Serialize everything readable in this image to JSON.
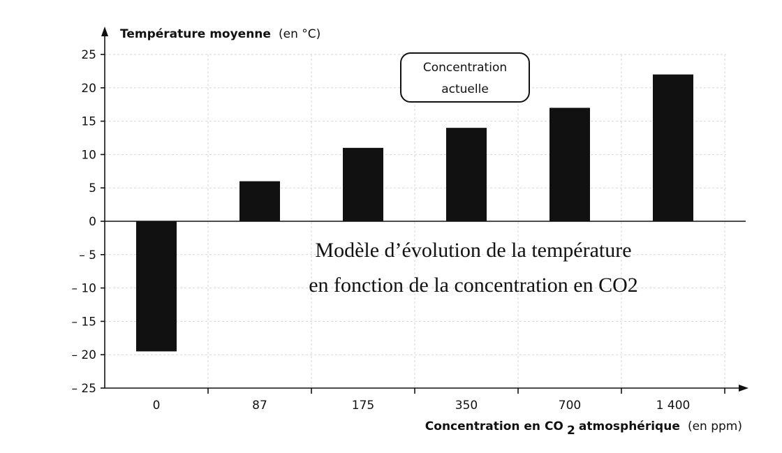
{
  "chart_data": {
    "type": "bar",
    "categories": [
      "0",
      "87",
      "175",
      "350",
      "700",
      "1 400"
    ],
    "values": [
      -19.5,
      6,
      11,
      14,
      17,
      22
    ],
    "ylabel_bold": "Température moyenne",
    "ylabel_unit": "(en °C)",
    "xlabel_bold_prefix": "Concentration en CO",
    "xlabel_subscript": "2",
    "xlabel_bold_suffix": " atmosphérique",
    "xlabel_unit": "(en ppm)",
    "ylim": [
      -25,
      25
    ],
    "y_ticks": [
      25,
      20,
      15,
      10,
      5,
      0,
      -5,
      -10,
      -15,
      -20,
      -25
    ],
    "y_tick_labels": [
      "25",
      "20",
      "15",
      "10",
      "5",
      "0",
      "– 5",
      "– 10",
      "– 15",
      "– 20",
      "– 25"
    ],
    "grid": true,
    "bar_color": "#111111",
    "annotation": {
      "lines": [
        "Concentration",
        "actuelle"
      ],
      "points_to_category": "350"
    },
    "overlay_text": {
      "lines": [
        "Modèle d’évolution de la température",
        "en fonction de la concentration en CO2"
      ]
    }
  }
}
